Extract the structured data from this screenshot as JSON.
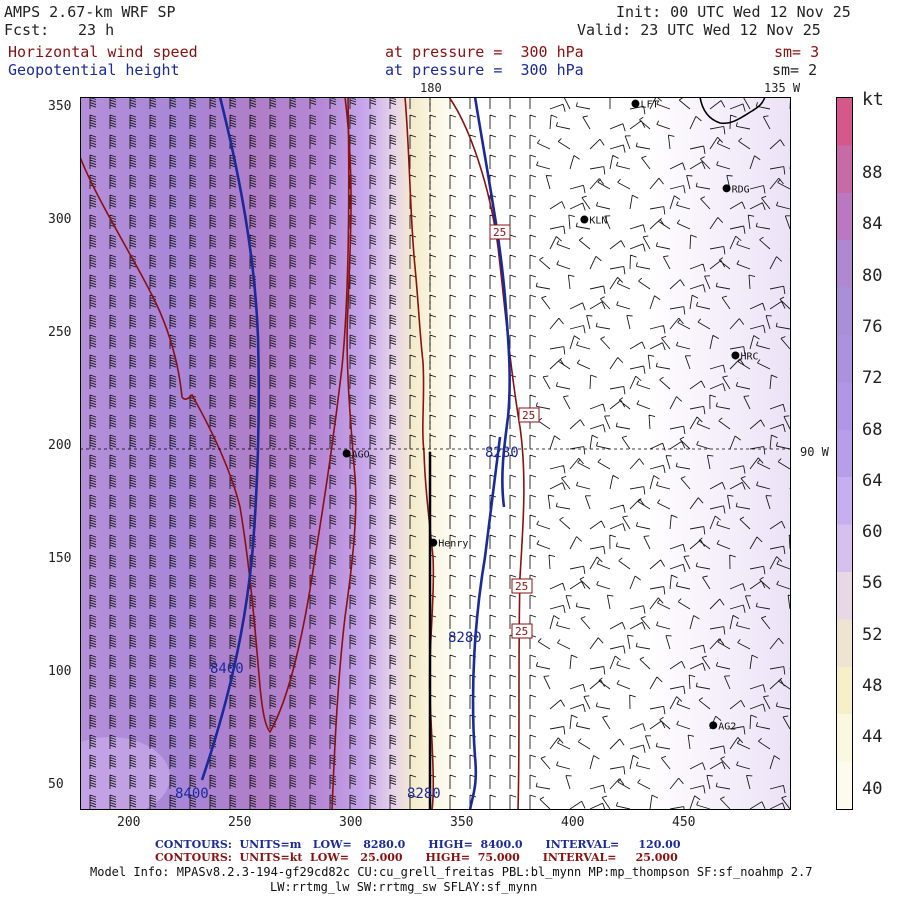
{
  "header": {
    "model_title": "AMPS 2.67-km WRF SP",
    "fcst_label": "Fcst:",
    "fcst_value": "23 h",
    "init": "Init: 00 UTC Wed 12 Nov 25",
    "valid": "Valid: 23 UTC Wed 12 Nov 25",
    "field1_name": "Horizontal wind speed",
    "field1_level": "at pressure =  300 hPa",
    "field1_sm": "sm= 3",
    "field2_name": "Geopotential height",
    "field2_level": "at pressure =  300 hPa",
    "field2_sm": "sm= 2"
  },
  "colors": {
    "wind_contour": "#8b1010",
    "height_contour": "#1a2a9a",
    "text": "#222222"
  },
  "map": {
    "top_meridian_label": "180",
    "top_right_label": "135 W",
    "right_label": "90 W",
    "stations": [
      {
        "id": "LFT",
        "x": 425,
        "y": 352
      },
      {
        "id": "RDG",
        "x": 466,
        "y": 314
      },
      {
        "id": "KLN",
        "x": 402,
        "y": 300
      },
      {
        "id": "HRC",
        "x": 470,
        "y": 239
      },
      {
        "id": "AGO",
        "x": 295,
        "y": 195
      },
      {
        "id": "Henry",
        "x": 334,
        "y": 155
      },
      {
        "id": "AG2",
        "x": 460,
        "y": 73
      },
      {
        "id": "",
        "x": 497,
        "y": 142
      }
    ],
    "height_labels": [
      "8280",
      "8280",
      "8280",
      "8400",
      "8400"
    ],
    "wind_labels": [
      "25",
      "25",
      "25",
      "25"
    ]
  },
  "axes": {
    "x_ticks": [
      "200",
      "250",
      "300",
      "350",
      "400",
      "450"
    ],
    "y_ticks": [
      "350",
      "300",
      "250",
      "200",
      "150",
      "100",
      "50"
    ]
  },
  "colorbar": {
    "unit": "kt",
    "labels": [
      "88",
      "84",
      "80",
      "76",
      "72",
      "68",
      "64",
      "60",
      "56",
      "52",
      "48",
      "44",
      "40"
    ],
    "colors": [
      "#d4588a",
      "#c66aa8",
      "#ba78c0",
      "#b088d0",
      "#a98fd8",
      "#ab92dd",
      "#b096e4",
      "#b79ee9",
      "#c6aef0",
      "#d6c0f0",
      "#e8d8e6",
      "#efe3d2",
      "#f6efc8",
      "#fbf8e0",
      "#fdfbee"
    ]
  },
  "footer": {
    "contours1": "CONTOURS:  UNITS=m   LOW=   8280.0      HIGH=  8400.0      INTERVAL=     120.00",
    "contours2": "CONTOURS:  UNITS=kt  LOW=   25.000      HIGH=  75.000      INTERVAL=     25.000",
    "model_info1": "Model Info: MPASv8.2.3-194-gf29cd82c CU:cu_grell_freitas PBL:bl_mynn MP:mp_thompson SF:sf_noahmp 2.7",
    "model_info2": "LW:rrtmg_lw SW:rrtmg_sw SFLAY:sf_mynn"
  }
}
